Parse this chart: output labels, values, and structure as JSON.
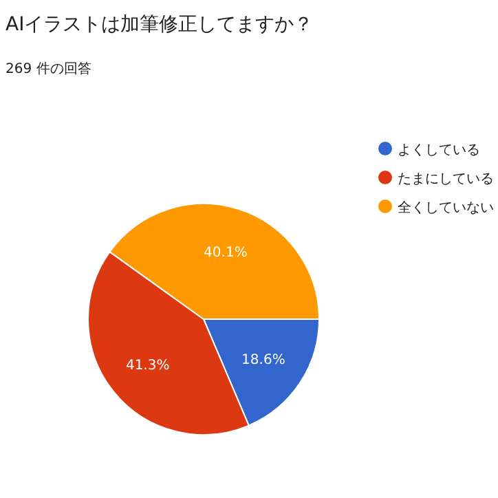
{
  "chart_data": {
    "type": "pie",
    "title": "AIイラストは加筆修正してますか？",
    "subtitle": "269 件の回答",
    "categories": [
      "よくしている",
      "たまにしている",
      "全くしていない"
    ],
    "values": [
      18.6,
      41.3,
      40.1
    ],
    "colors": [
      "#3366cc",
      "#dc3912",
      "#ff9900"
    ],
    "value_labels": [
      "18.6%",
      "41.3%",
      "40.1%"
    ],
    "legend": "right"
  }
}
